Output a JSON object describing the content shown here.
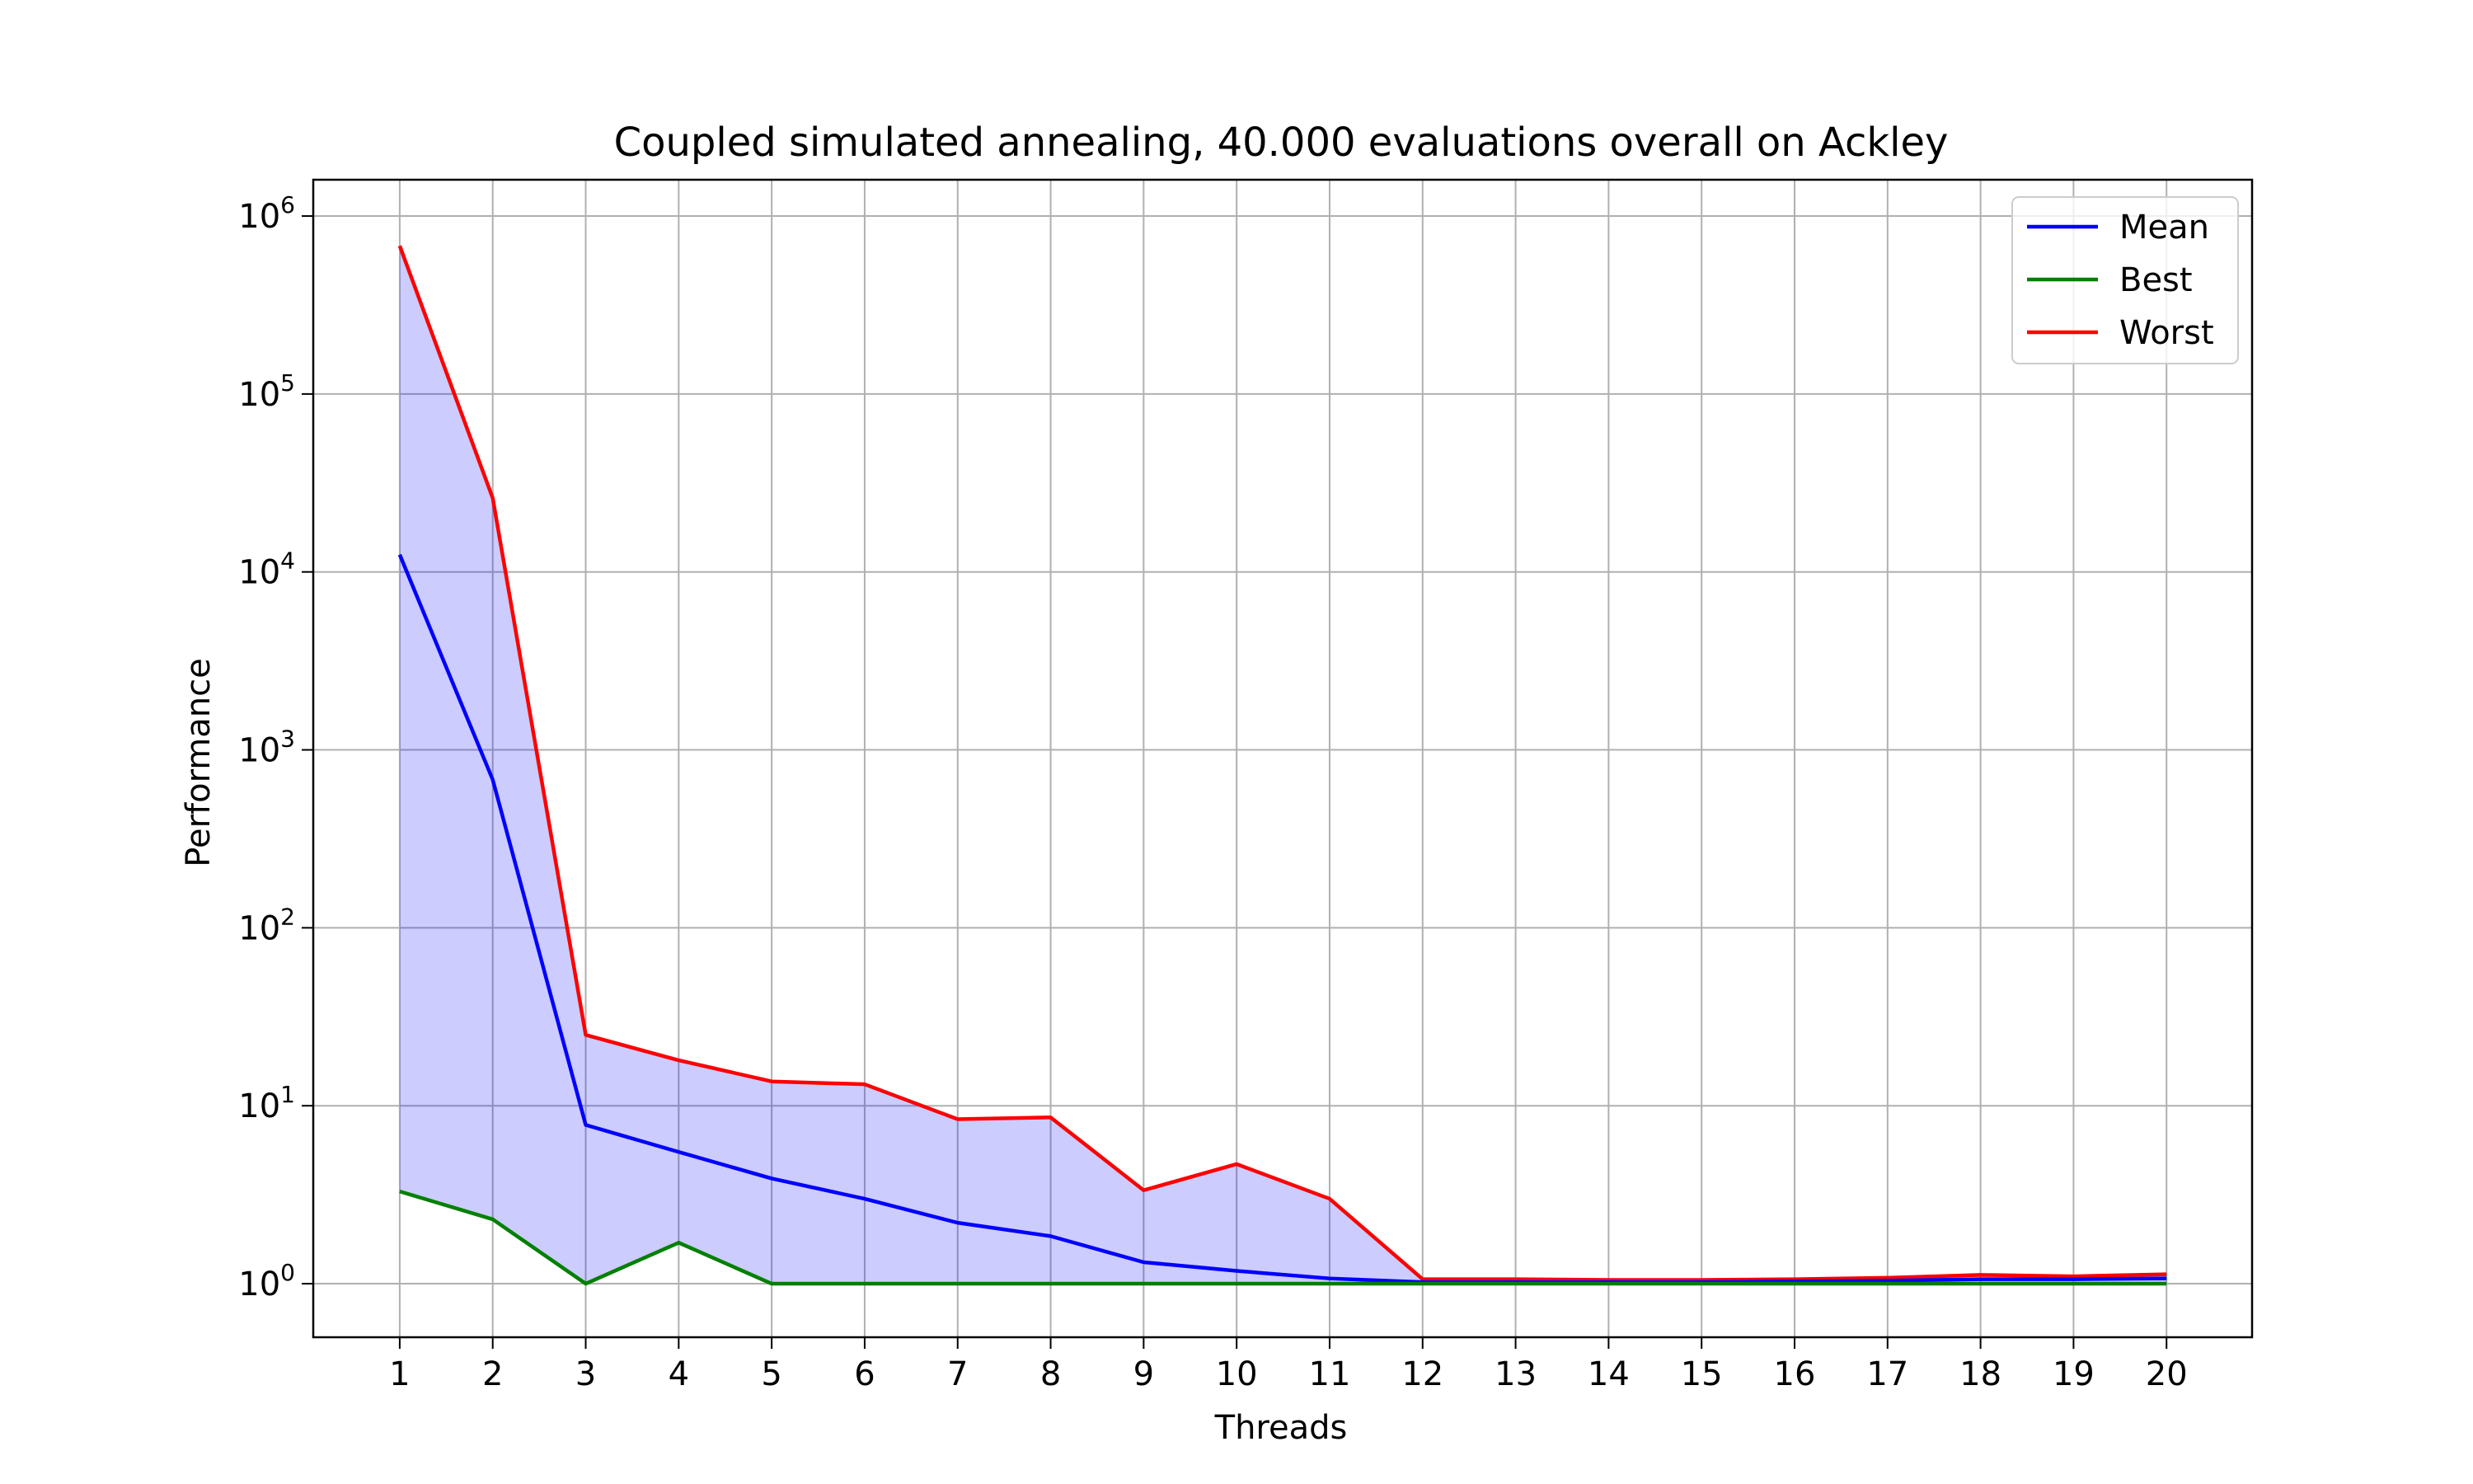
{
  "chart_data": {
    "type": "line",
    "title": "Coupled simulated annealing, 40.000 evaluations overall on Ackley",
    "xlabel": "Threads",
    "ylabel": "Performance",
    "x": [
      1,
      2,
      3,
      4,
      5,
      6,
      7,
      8,
      9,
      10,
      11,
      12,
      13,
      14,
      15,
      16,
      17,
      18,
      19,
      20
    ],
    "x_ticks": [
      "1",
      "2",
      "3",
      "4",
      "5",
      "6",
      "7",
      "8",
      "9",
      "10",
      "11",
      "12",
      "13",
      "14",
      "15",
      "16",
      "17",
      "18",
      "19",
      "20"
    ],
    "xlim": [
      0.07,
      20.92
    ],
    "y_scale": "log",
    "ylim": [
      0.5,
      1600000
    ],
    "y_ticks": [
      {
        "value": 1,
        "base": "10",
        "exp": "0"
      },
      {
        "value": 10,
        "base": "10",
        "exp": "1"
      },
      {
        "value": 100,
        "base": "10",
        "exp": "2"
      },
      {
        "value": 1000,
        "base": "10",
        "exp": "3"
      },
      {
        "value": 10000,
        "base": "10",
        "exp": "4"
      },
      {
        "value": 100000,
        "base": "10",
        "exp": "5"
      },
      {
        "value": 1000000,
        "base": "10",
        "exp": "6"
      }
    ],
    "grid": true,
    "legend_position": "top-right",
    "series": [
      {
        "name": "Mean",
        "color": "#0000ff",
        "values": [
          12500,
          680,
          7.8,
          5.5,
          3.9,
          3.0,
          2.2,
          1.85,
          1.32,
          1.18,
          1.07,
          1.02,
          1.02,
          1.02,
          1.02,
          1.03,
          1.04,
          1.06,
          1.06,
          1.07
        ]
      },
      {
        "name": "Best",
        "color": "#008000",
        "values": [
          3.3,
          2.3,
          1.0,
          1.7,
          1.0,
          1.0,
          1.0,
          1.0,
          1.0,
          1.0,
          1.0,
          1.0,
          1.0,
          1.0,
          1.0,
          1.0,
          1.0,
          1.0,
          1.0,
          1.0
        ]
      },
      {
        "name": "Worst",
        "color": "#ff0000",
        "values": [
          680000,
          26000,
          25,
          18,
          13.7,
          13.2,
          8.4,
          8.6,
          3.35,
          4.7,
          3.0,
          1.06,
          1.06,
          1.05,
          1.05,
          1.06,
          1.08,
          1.12,
          1.1,
          1.13
        ]
      }
    ],
    "fill_between": {
      "lower": "Best",
      "upper": "Worst",
      "color": "#0000ff",
      "opacity": 0.2
    }
  }
}
